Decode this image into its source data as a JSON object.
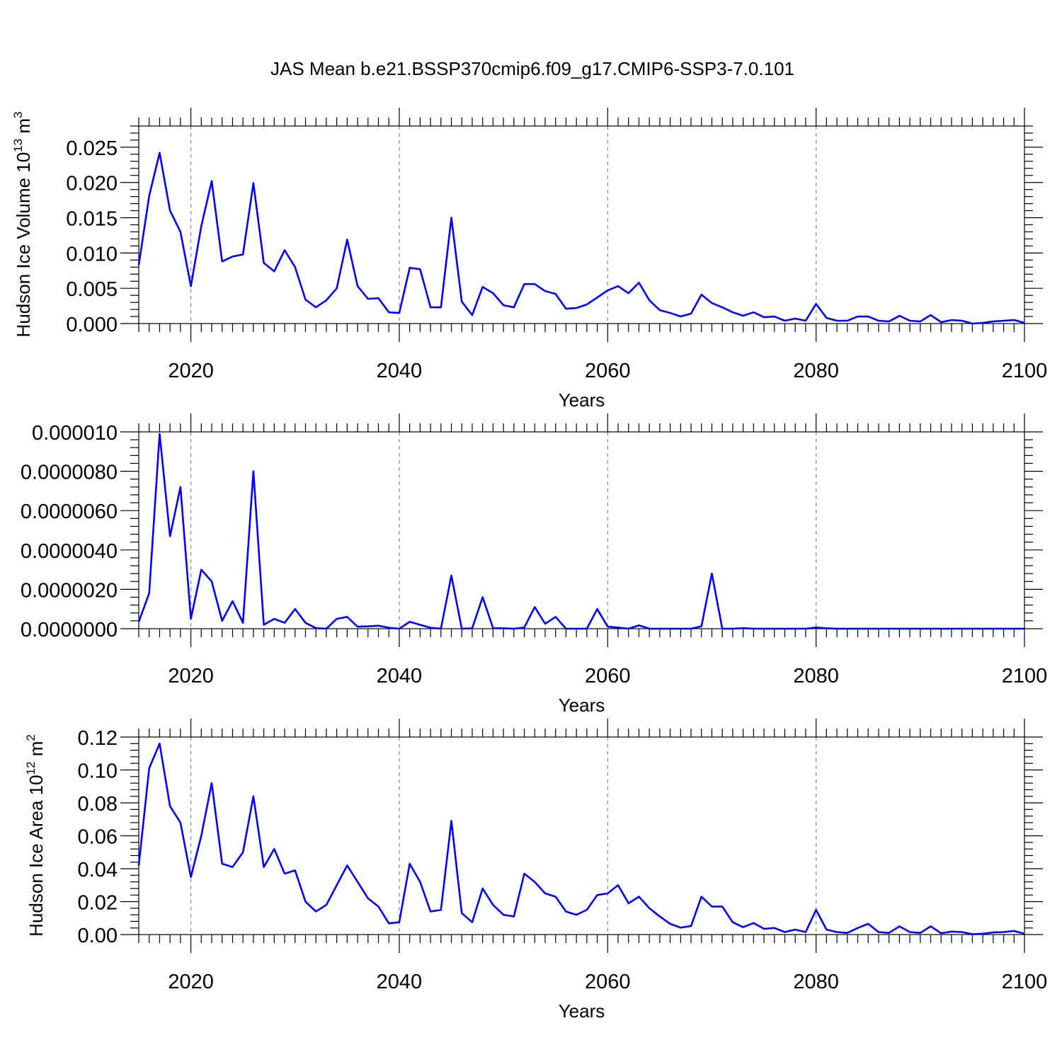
{
  "title": "JAS Mean b.e21.BSSP370cmip6.f09_g17.CMIP6-SSP3-7.0.101",
  "line_color": "#0000ff",
  "chart_data": [
    {
      "type": "line",
      "ylabel_main": "Hudson Ice Volume 10",
      "ylabel_exp": "13",
      "ylabel_unit": " m",
      "ylabel_unit_exp": "3",
      "xlabel": "Years",
      "xlim": [
        2015,
        2100
      ],
      "ylim": [
        0,
        0.028
      ],
      "xticks": [
        2020,
        2040,
        2060,
        2080,
        2100
      ],
      "xtick_labels": [
        "2020",
        "2040",
        "2060",
        "2080",
        "2100"
      ],
      "yticks": [
        0,
        0.005,
        0.01,
        0.015,
        0.02,
        0.025
      ],
      "ytick_labels": [
        "0.000",
        "0.005",
        "0.010",
        "0.015",
        "0.020",
        "0.025"
      ],
      "grid": "dashed vertical at major x ticks",
      "series": [
        {
          "x": [
            2015,
            2016,
            2017,
            2018,
            2019,
            2020,
            2021,
            2022,
            2023,
            2024,
            2025,
            2026,
            2027,
            2028,
            2029,
            2030,
            2031,
            2032,
            2033,
            2034,
            2035,
            2036,
            2037,
            2038,
            2039,
            2040,
            2041,
            2042,
            2043,
            2044,
            2045,
            2046,
            2047,
            2048,
            2049,
            2050,
            2051,
            2052,
            2053,
            2054,
            2055,
            2056,
            2057,
            2058,
            2059,
            2060,
            2061,
            2062,
            2063,
            2064,
            2065,
            2066,
            2067,
            2068,
            2069,
            2070,
            2071,
            2072,
            2073,
            2074,
            2075,
            2076,
            2077,
            2078,
            2079,
            2080,
            2081,
            2082,
            2083,
            2084,
            2085,
            2086,
            2087,
            2088,
            2089,
            2090,
            2091,
            2092,
            2093,
            2094,
            2095,
            2096,
            2097,
            2098,
            2099,
            2100
          ],
          "values": [
            0.0083,
            0.0181,
            0.0242,
            0.016,
            0.013,
            0.0053,
            0.0138,
            0.0202,
            0.0088,
            0.0095,
            0.0098,
            0.0199,
            0.0086,
            0.0074,
            0.0104,
            0.008,
            0.0034,
            0.0023,
            0.0033,
            0.005,
            0.0119,
            0.0053,
            0.0035,
            0.0036,
            0.0016,
            0.0015,
            0.0079,
            0.0077,
            0.0023,
            0.0023,
            0.015,
            0.0031,
            0.0012,
            0.0052,
            0.0043,
            0.0026,
            0.0023,
            0.0056,
            0.0056,
            0.0046,
            0.0042,
            0.0021,
            0.0022,
            0.0027,
            0.0037,
            0.0047,
            0.0053,
            0.0043,
            0.0058,
            0.0033,
            0.0019,
            0.0015,
            0.001,
            0.0014,
            0.0041,
            0.0029,
            0.0023,
            0.0016,
            0.0011,
            0.0016,
            0.0009,
            0.001,
            0.0004,
            0.0007,
            0.0004,
            0.0028,
            0.0008,
            0.0004,
            0.0004,
            0.001,
            0.001,
            0.0004,
            0.0003,
            0.0011,
            0.0004,
            0.0003,
            0.0012,
            0.0002,
            0.0005,
            0.0004,
            0.0,
            0.0001,
            0.0003,
            0.0004,
            0.0005,
            0.0001
          ]
        }
      ]
    },
    {
      "type": "line",
      "ylabel_main": "",
      "xlabel": "Years",
      "xlim": [
        2015,
        2100
      ],
      "ylim": [
        0,
        1e-05
      ],
      "xticks": [
        2020,
        2040,
        2060,
        2080,
        2100
      ],
      "xtick_labels": [
        "2020",
        "2040",
        "2060",
        "2080",
        "2100"
      ],
      "yticks": [
        0,
        2e-06,
        4e-06,
        6e-06,
        8e-06,
        1e-05
      ],
      "ytick_labels": [
        "0.0000000",
        "0.0000020",
        "0.0000040",
        "0.0000060",
        "0.0000080",
        "0.000010"
      ],
      "grid": "dashed vertical at major x ticks",
      "series": [
        {
          "x": [
            2015,
            2016,
            2017,
            2018,
            2019,
            2020,
            2021,
            2022,
            2023,
            2024,
            2025,
            2026,
            2027,
            2028,
            2029,
            2030,
            2031,
            2032,
            2033,
            2034,
            2035,
            2036,
            2037,
            2038,
            2039,
            2040,
            2041,
            2042,
            2043,
            2044,
            2045,
            2046,
            2047,
            2048,
            2049,
            2050,
            2051,
            2052,
            2053,
            2054,
            2055,
            2056,
            2057,
            2058,
            2059,
            2060,
            2061,
            2062,
            2063,
            2064,
            2065,
            2066,
            2067,
            2068,
            2069,
            2070,
            2071,
            2072,
            2073,
            2074,
            2075,
            2076,
            2077,
            2078,
            2079,
            2080,
            2081,
            2082,
            2083,
            2084,
            2085,
            2086,
            2087,
            2088,
            2089,
            2090,
            2091,
            2092,
            2093,
            2094,
            2095,
            2096,
            2097,
            2098,
            2099,
            2100
          ],
          "values": [
            3.5e-07,
            1.8e-06,
            9.9e-06,
            4.7e-06,
            7.2e-06,
            5e-07,
            3e-06,
            2.4e-06,
            4e-07,
            1.4e-06,
            3e-07,
            8e-06,
            2e-07,
            5e-07,
            3e-07,
            1e-06,
            3e-07,
            3e-08,
            0.0,
            5e-07,
            6e-07,
            1e-07,
            1.2e-07,
            1.5e-07,
            5e-08,
            0.0,
            3.5e-07,
            2e-07,
            5e-08,
            0.0,
            2.7e-06,
            0.0,
            2e-08,
            1.6e-06,
            3e-08,
            2e-08,
            0.0,
            6e-08,
            1.1e-06,
            2.5e-07,
            6e-07,
            0.0,
            0.0,
            0.0,
            1e-06,
            1e-07,
            6e-08,
            0.0,
            1.7e-07,
            0.0,
            0.0,
            0.0,
            0.0,
            0.0,
            1.2e-07,
            2.8e-06,
            0.0,
            0.0,
            3e-08,
            0.0,
            0.0,
            0.0,
            0.0,
            0.0,
            0.0,
            6e-08,
            2e-08,
            0.0,
            0.0,
            0.0,
            0.0,
            0.0,
            0.0,
            0.0,
            0.0,
            0.0,
            0.0,
            0.0,
            0.0,
            0.0,
            0.0,
            0.0,
            0.0,
            0.0,
            0.0,
            0.0
          ]
        }
      ]
    },
    {
      "type": "line",
      "ylabel_main": "Hudson Ice Area 10",
      "ylabel_exp": "12",
      "ylabel_unit": " m",
      "ylabel_unit_exp": "2",
      "xlabel": "Years",
      "xlim": [
        2015,
        2100
      ],
      "ylim": [
        0,
        0.12
      ],
      "xticks": [
        2020,
        2040,
        2060,
        2080,
        2100
      ],
      "xtick_labels": [
        "2020",
        "2040",
        "2060",
        "2080",
        "2100"
      ],
      "yticks": [
        0,
        0.02,
        0.04,
        0.06,
        0.08,
        0.1,
        0.12
      ],
      "ytick_labels": [
        "0.00",
        "0.02",
        "0.04",
        "0.06",
        "0.08",
        "0.10",
        "0.12"
      ],
      "grid": "dashed vertical at major x ticks",
      "series": [
        {
          "x": [
            2015,
            2016,
            2017,
            2018,
            2019,
            2020,
            2021,
            2022,
            2023,
            2024,
            2025,
            2026,
            2027,
            2028,
            2029,
            2030,
            2031,
            2032,
            2033,
            2034,
            2035,
            2036,
            2037,
            2038,
            2039,
            2040,
            2041,
            2042,
            2043,
            2044,
            2045,
            2046,
            2047,
            2048,
            2049,
            2050,
            2051,
            2052,
            2053,
            2054,
            2055,
            2056,
            2057,
            2058,
            2059,
            2060,
            2061,
            2062,
            2063,
            2064,
            2065,
            2066,
            2067,
            2068,
            2069,
            2070,
            2071,
            2072,
            2073,
            2074,
            2075,
            2076,
            2077,
            2078,
            2079,
            2080,
            2081,
            2082,
            2083,
            2084,
            2085,
            2086,
            2087,
            2088,
            2089,
            2090,
            2091,
            2092,
            2093,
            2094,
            2095,
            2096,
            2097,
            2098,
            2099,
            2100
          ],
          "values": [
            0.042,
            0.101,
            0.116,
            0.078,
            0.068,
            0.035,
            0.06,
            0.092,
            0.043,
            0.041,
            0.05,
            0.084,
            0.041,
            0.052,
            0.037,
            0.039,
            0.02,
            0.014,
            0.018,
            0.03,
            0.042,
            0.032,
            0.022,
            0.017,
            0.0068,
            0.0075,
            0.043,
            0.032,
            0.014,
            0.015,
            0.069,
            0.013,
            0.0075,
            0.028,
            0.018,
            0.012,
            0.011,
            0.037,
            0.032,
            0.025,
            0.023,
            0.014,
            0.012,
            0.015,
            0.024,
            0.025,
            0.03,
            0.019,
            0.023,
            0.016,
            0.011,
            0.0065,
            0.0042,
            0.0052,
            0.023,
            0.017,
            0.017,
            0.0075,
            0.0045,
            0.007,
            0.0035,
            0.004,
            0.0015,
            0.003,
            0.0015,
            0.015,
            0.003,
            0.0015,
            0.001,
            0.004,
            0.0065,
            0.0015,
            0.001,
            0.005,
            0.0015,
            0.001,
            0.005,
            0.0008,
            0.0018,
            0.0015,
            0.0002,
            0.0005,
            0.0013,
            0.0015,
            0.0022,
            0.0005
          ]
        }
      ]
    }
  ]
}
